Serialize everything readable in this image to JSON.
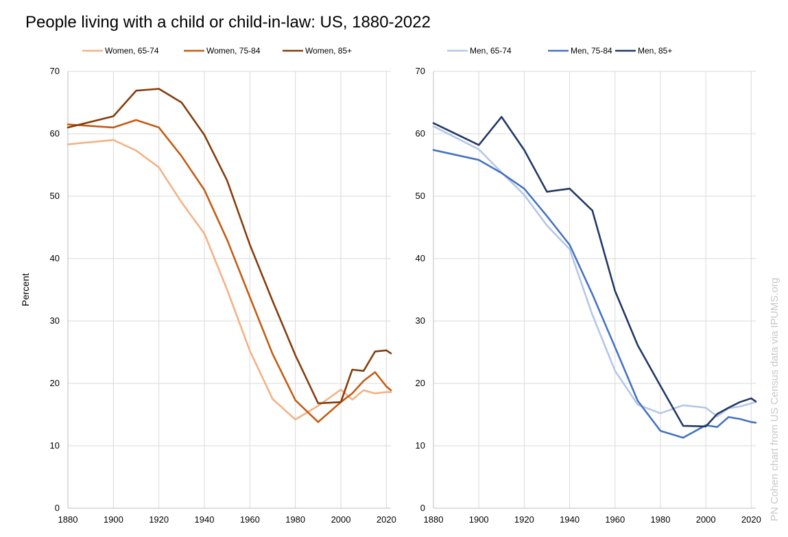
{
  "title": "People living with a child or child-in-law: US, 1880-2022",
  "credit": "PN Cohen chart from US Census data via IPUMS.org",
  "chart_data": [
    {
      "type": "line",
      "title": "",
      "xlabel": "",
      "ylabel": "Percent",
      "xlim": [
        1880,
        2022
      ],
      "ylim": [
        0,
        70
      ],
      "xticks": [
        1880,
        1900,
        1920,
        1940,
        1960,
        1980,
        2000,
        2020
      ],
      "yticks": [
        0,
        10,
        20,
        30,
        40,
        50,
        60,
        70
      ],
      "grid": true,
      "legend": "top",
      "series": [
        {
          "name": "Women, 65-74",
          "color": "#f4b183",
          "x": [
            1880,
            1900,
            1910,
            1920,
            1930,
            1940,
            1950,
            1960,
            1970,
            1980,
            1990,
            2000,
            2005,
            2010,
            2015,
            2020,
            2022
          ],
          "y": [
            58.3,
            59.0,
            57.3,
            54.6,
            49.0,
            44.0,
            35.0,
            25.2,
            17.5,
            14.2,
            16.4,
            19.0,
            17.4,
            18.9,
            18.4,
            18.6,
            18.6
          ]
        },
        {
          "name": "Women, 75-84",
          "color": "#c55a11",
          "x": [
            1880,
            1900,
            1910,
            1920,
            1930,
            1940,
            1950,
            1960,
            1970,
            1980,
            1990,
            2000,
            2005,
            2010,
            2015,
            2020,
            2022
          ],
          "y": [
            61.5,
            61.0,
            62.2,
            61.0,
            56.4,
            51.0,
            43.0,
            33.8,
            24.7,
            17.3,
            13.8,
            17.0,
            18.4,
            20.4,
            21.8,
            19.5,
            18.9
          ]
        },
        {
          "name": "Women, 85+",
          "color": "#843c0c",
          "x": [
            1880,
            1900,
            1910,
            1920,
            1930,
            1940,
            1950,
            1960,
            1970,
            1980,
            1990,
            2000,
            2005,
            2010,
            2015,
            2020,
            2022
          ],
          "y": [
            61.0,
            62.8,
            66.9,
            67.2,
            65.0,
            59.8,
            52.5,
            42.2,
            33.2,
            24.5,
            16.8,
            17.0,
            22.2,
            22.0,
            25.1,
            25.3,
            24.8
          ]
        }
      ]
    },
    {
      "type": "line",
      "title": "",
      "xlabel": "",
      "ylabel": "",
      "xlim": [
        1880,
        2022
      ],
      "ylim": [
        0,
        70
      ],
      "xticks": [
        1880,
        1900,
        1920,
        1940,
        1960,
        1980,
        2000,
        2020
      ],
      "yticks": [
        0,
        10,
        20,
        30,
        40,
        50,
        60,
        70
      ],
      "grid": true,
      "legend": "top",
      "series": [
        {
          "name": "Men, 65-74",
          "color": "#b4c7e7",
          "x": [
            1880,
            1900,
            1910,
            1920,
            1930,
            1940,
            1950,
            1960,
            1970,
            1980,
            1990,
            2000,
            2005,
            2010,
            2015,
            2020,
            2022
          ],
          "y": [
            61.2,
            57.5,
            53.8,
            50.2,
            45.3,
            41.5,
            31.0,
            22.0,
            16.6,
            15.2,
            16.5,
            16.1,
            14.7,
            16.0,
            16.3,
            16.8,
            17.0
          ]
        },
        {
          "name": "Men, 75-84",
          "color": "#4472c4",
          "x": [
            1880,
            1900,
            1910,
            1920,
            1930,
            1940,
            1950,
            1960,
            1970,
            1980,
            1990,
            2000,
            2005,
            2010,
            2015,
            2020,
            2022
          ],
          "y": [
            57.4,
            55.8,
            53.7,
            51.2,
            46.8,
            42.2,
            34.3,
            25.8,
            17.2,
            12.4,
            11.3,
            13.3,
            13.0,
            14.6,
            14.3,
            13.8,
            13.7
          ]
        },
        {
          "name": "Men, 85+",
          "color": "#203864",
          "x": [
            1880,
            1900,
            1910,
            1920,
            1930,
            1940,
            1950,
            1960,
            1970,
            1980,
            1990,
            2000,
            2005,
            2010,
            2015,
            2020,
            2022
          ],
          "y": [
            61.7,
            58.2,
            62.7,
            57.4,
            50.7,
            51.2,
            47.7,
            34.8,
            26.1,
            19.6,
            13.2,
            13.1,
            15.1,
            16.1,
            17.0,
            17.6,
            17.1
          ]
        }
      ]
    }
  ]
}
